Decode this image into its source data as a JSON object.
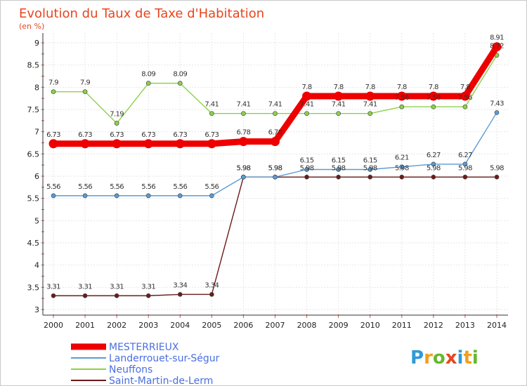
{
  "chart_data": {
    "type": "line",
    "title": "Evolution du Taux de Taxe d'Habitation",
    "subtitle": "(en %)",
    "x": [
      "2000",
      "2001",
      "2002",
      "2003",
      "2004",
      "2005",
      "2006",
      "2007",
      "2008",
      "2009",
      "2010",
      "2011",
      "2012",
      "2013",
      "2014"
    ],
    "ylim": [
      3,
      9
    ],
    "yticks": [
      "3",
      "3.5",
      "4",
      "4.5",
      "5",
      "5.5",
      "6",
      "6.5",
      "7",
      "7.5",
      "8",
      "8.5",
      "9"
    ],
    "grid": true,
    "legend_position": "bottom-left",
    "series": [
      {
        "name": "Saint-Martin-de-Lerm",
        "color": "#6b1a1a",
        "values": [
          3.31,
          3.31,
          3.31,
          3.31,
          3.34,
          3.34,
          5.98,
          5.98,
          5.98,
          5.98,
          5.98,
          5.98,
          5.98,
          5.98,
          5.98
        ],
        "labels": [
          "3.31",
          "3.31",
          "3.31",
          "3.31",
          "3.34",
          "3.34",
          "5.98",
          "5.98",
          "5.98",
          "5.98",
          "5.98",
          "5.98",
          "5.98",
          "5.98",
          "5.98"
        ]
      },
      {
        "name": "Landerrouet-sur-Ségur",
        "color": "#5b9bd5",
        "values": [
          5.56,
          5.56,
          5.56,
          5.56,
          5.56,
          5.56,
          5.98,
          5.98,
          6.15,
          6.15,
          6.15,
          6.21,
          6.27,
          6.27,
          7.43
        ],
        "labels": [
          "5.56",
          "5.56",
          "5.56",
          "5.56",
          "5.56",
          "5.56",
          "5.98",
          "5.98",
          "6.15",
          "6.15",
          "6.15",
          "6.21",
          "6.27",
          "6.27",
          "7.43"
        ]
      },
      {
        "name": "Neuffons",
        "color": "#8cd24a",
        "values": [
          7.9,
          7.9,
          7.19,
          8.09,
          8.09,
          7.41,
          7.41,
          7.41,
          7.41,
          7.41,
          7.41,
          7.56,
          7.56,
          7.56,
          8.72
        ],
        "labels": [
          "7.9",
          "7.9",
          "7.19",
          "8.09",
          "8.09",
          "7.41",
          "7.41",
          "7.41",
          "7.41",
          "7.41",
          "7.41",
          "7.56",
          "7.56",
          "7.56",
          "8.72"
        ]
      },
      {
        "name": "MESTERRIEUX",
        "color": "#ee0000",
        "values": [
          6.73,
          6.73,
          6.73,
          6.73,
          6.73,
          6.73,
          6.78,
          6.78,
          7.8,
          7.8,
          7.8,
          7.8,
          7.8,
          7.8,
          8.91
        ],
        "labels": [
          "6.73",
          "6.73",
          "6.73",
          "6.73",
          "6.73",
          "6.73",
          "6.78",
          "6.78",
          "7.8",
          "7.8",
          "7.8",
          "7.8",
          "7.8",
          "7.8",
          "8.91"
        ]
      }
    ],
    "legend": [
      "MESTERRIEUX",
      "Landerrouet-sur-Ségur",
      "Neuffons",
      "Saint-Martin-de-Lerm"
    ]
  },
  "logo": {
    "letters": [
      "P",
      "r",
      "o",
      "x",
      "i",
      "t",
      "i"
    ],
    "colors": [
      "#2e9bd6",
      "#f0a01e",
      "#66b82e",
      "#e8451e",
      "#2e9bd6",
      "#f0a01e",
      "#66b82e"
    ]
  }
}
